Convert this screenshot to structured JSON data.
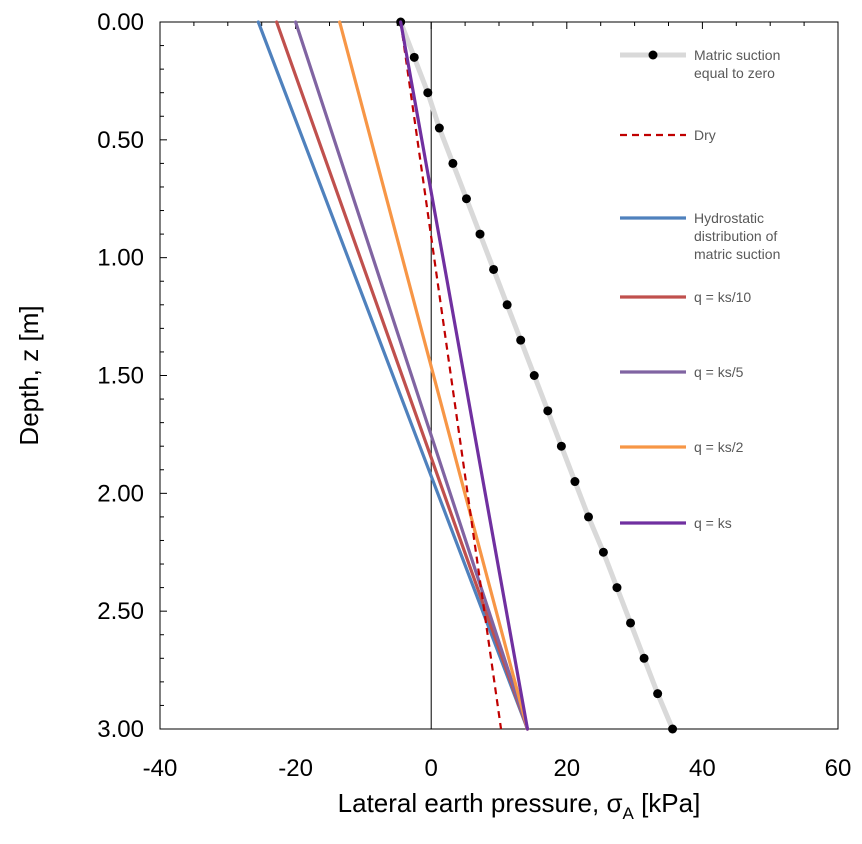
{
  "chart_data": {
    "type": "line",
    "xlabel": "Lateral earth pressure, σ",
    "xlabel_sub": "A",
    "xlabel_unit": "[kPa]",
    "ylabel": "Depth, z [m]",
    "xlim": [
      -40,
      60
    ],
    "ylim": [
      0,
      3
    ],
    "y_inverted": true,
    "x_axis_position": "top",
    "x_ticks": [
      -40,
      -20,
      0,
      20,
      40,
      60
    ],
    "x_tick_labels": [
      "-40",
      "-20",
      "0",
      "20",
      "40",
      "60"
    ],
    "y_ticks": [
      0,
      0.5,
      1,
      1.5,
      2,
      2.5,
      3
    ],
    "y_tick_labels": [
      "0.00",
      "0.50",
      "1.00",
      "1.50",
      "2.00",
      "2.50",
      "3.00"
    ],
    "grid": false,
    "zero_line": true,
    "legend_placement": "right",
    "series": [
      {
        "name": "Matric suction equal to zero",
        "color": "#d9d9d9",
        "marker_color": "#000000",
        "style": "solid-with-markers",
        "points": [
          [
            -4.5,
            0
          ],
          [
            -2.5,
            0.15
          ],
          [
            -0.5,
            0.3
          ],
          [
            1.2,
            0.45
          ],
          [
            3.2,
            0.6
          ],
          [
            5.2,
            0.75
          ],
          [
            7.2,
            0.9
          ],
          [
            9.2,
            1.05
          ],
          [
            11.2,
            1.2
          ],
          [
            13.2,
            1.35
          ],
          [
            15.2,
            1.5
          ],
          [
            17.2,
            1.65
          ],
          [
            19.2,
            1.8
          ],
          [
            21.2,
            1.95
          ],
          [
            23.2,
            2.1
          ],
          [
            25.4,
            2.25
          ],
          [
            27.4,
            2.4
          ],
          [
            29.4,
            2.55
          ],
          [
            31.4,
            2.7
          ],
          [
            33.4,
            2.85
          ],
          [
            35.6,
            3.0
          ]
        ]
      },
      {
        "name": "Dry",
        "color": "#c00000",
        "style": "dashed",
        "points": [
          [
            -4.5,
            0
          ],
          [
            10.3,
            3.0
          ]
        ]
      },
      {
        "name": "Hydrostatic distribution of matric suction",
        "color": "#4f81bd",
        "style": "solid",
        "points": [
          [
            -25.5,
            0
          ],
          [
            14.2,
            3.0
          ]
        ]
      },
      {
        "name": "q = ks/10",
        "color": "#c0504d",
        "style": "solid",
        "points": [
          [
            -22.8,
            0
          ],
          [
            14.2,
            3.0
          ]
        ]
      },
      {
        "name": "q = ks/5",
        "color": "#8064a2",
        "style": "solid",
        "points": [
          [
            -20.0,
            0
          ],
          [
            14.2,
            3.0
          ]
        ]
      },
      {
        "name": "q = ks/2",
        "color": "#f79646",
        "style": "solid",
        "points": [
          [
            -13.5,
            0
          ],
          [
            14.2,
            3.0
          ]
        ]
      },
      {
        "name": "q = ks",
        "color": "#7030a0",
        "style": "solid",
        "points": [
          [
            -4.5,
            0
          ],
          [
            14.2,
            3.0
          ]
        ]
      }
    ],
    "legend": [
      {
        "lines": [
          "Matric suction",
          "equal to zero"
        ]
      },
      {
        "lines": [
          "Dry"
        ]
      },
      {
        "lines": [
          "Hydrostatic",
          "distribution of",
          "matric suction"
        ]
      },
      {
        "lines": [
          "q = ks/10"
        ]
      },
      {
        "lines": [
          "q = ks/5"
        ]
      },
      {
        "lines": [
          "q = ks/2"
        ]
      },
      {
        "lines": [
          "q = ks"
        ]
      }
    ]
  }
}
